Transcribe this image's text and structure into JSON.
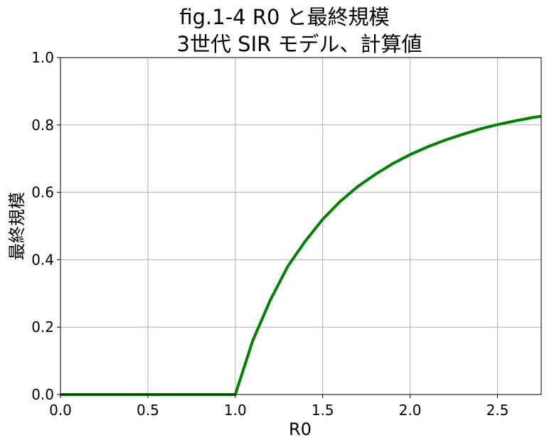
{
  "chart_data": {
    "type": "line",
    "title_lines": [
      "fig.1-4  R0 と最終規模",
      "3世代 SIR モデル、計算値"
    ],
    "xlabel": "R0",
    "ylabel": "最終規模",
    "xlim": [
      0,
      2.75
    ],
    "ylim": [
      0,
      1.0
    ],
    "xticks": [
      0.0,
      0.5,
      1.0,
      1.5,
      2.0,
      2.5
    ],
    "xtick_labels": [
      "0.0",
      "0.5",
      "1.0",
      "1.5",
      "2.0",
      "2.5"
    ],
    "yticks": [
      0.0,
      0.2,
      0.4,
      0.6,
      0.8,
      1.0
    ],
    "ytick_labels": [
      "0.0",
      "0.2",
      "0.4",
      "0.6",
      "0.8",
      "1.0"
    ],
    "grid": true,
    "series": [
      {
        "color": "#008000",
        "x": [
          0.0,
          0.1,
          0.2,
          0.3,
          0.4,
          0.5,
          0.6,
          0.7,
          0.8,
          0.9,
          1.0,
          1.1,
          1.2,
          1.3,
          1.4,
          1.5,
          1.6,
          1.7,
          1.8,
          1.9,
          2.0,
          2.1,
          2.2,
          2.3,
          2.4,
          2.5,
          2.6,
          2.7,
          2.75
        ],
        "y": [
          0.0,
          0.0,
          0.0,
          0.0,
          0.0,
          0.0,
          0.0,
          0.0,
          0.0,
          0.0,
          0.0,
          0.16,
          0.28,
          0.38,
          0.455,
          0.52,
          0.573,
          0.617,
          0.653,
          0.685,
          0.712,
          0.735,
          0.755,
          0.772,
          0.788,
          0.801,
          0.812,
          0.822,
          0.826
        ]
      }
    ]
  }
}
